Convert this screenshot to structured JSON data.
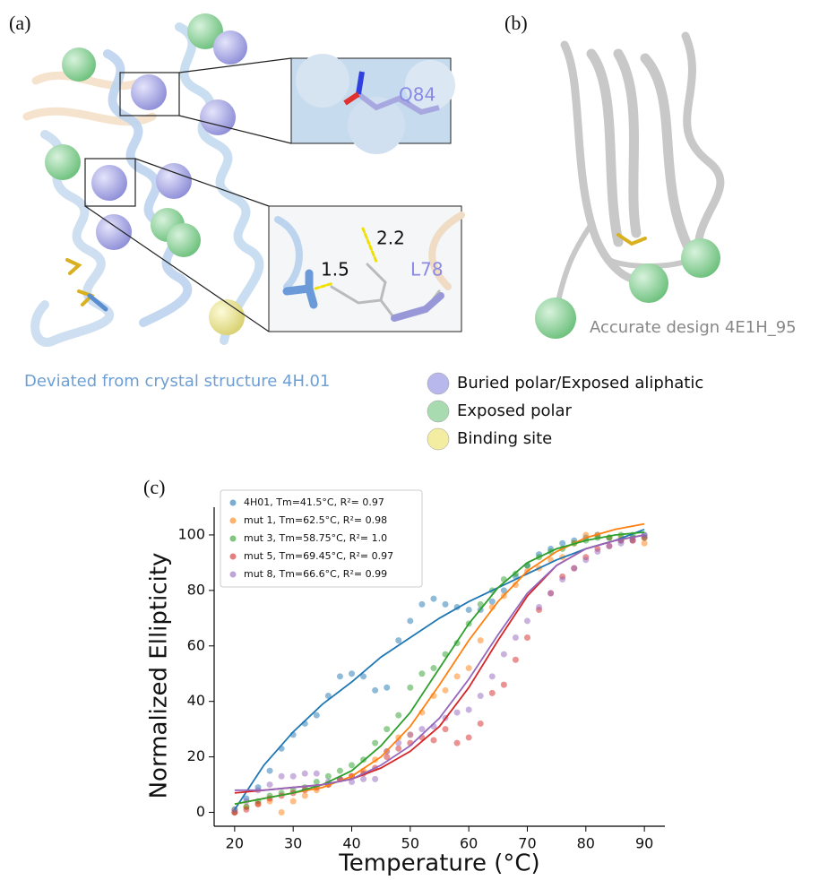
{
  "panel_a": {
    "label": "(a)",
    "inset_top_label": "Q84",
    "distance_1": "2.2",
    "distance_2": "1.5",
    "inset_bottom_label": "L78",
    "caption": "Deviated from crystal structure 4H.01"
  },
  "panel_b": {
    "label": "(b)",
    "caption": "Accurate design 4E1H_95"
  },
  "sphere_legend": [
    {
      "label": "Buried polar/Exposed aliphatic",
      "color": "#b8b8ec"
    },
    {
      "label": "Exposed polar",
      "color": "#a8dcb0"
    },
    {
      "label": "Binding site",
      "color": "#f2eda0"
    }
  ],
  "chart_data": {
    "type": "scatter",
    "panel_label": "(c)",
    "x_label": "Temperature (°C)",
    "y_label": "Normalized Ellipticity",
    "x": [
      20,
      22,
      24,
      26,
      28,
      30,
      32,
      34,
      36,
      38,
      40,
      42,
      44,
      46,
      48,
      50,
      52,
      54,
      56,
      58,
      60,
      62,
      64,
      66,
      68,
      70,
      72,
      74,
      76,
      78,
      80,
      82,
      84,
      86,
      88,
      90
    ],
    "fit_x": [
      20,
      25,
      30,
      35,
      40,
      45,
      50,
      55,
      60,
      65,
      70,
      75,
      80,
      85,
      90
    ],
    "series": [
      {
        "name": "4H01, Tm=41.5°C, R²= 0.97",
        "color": "#1f77b4",
        "values": [
          0,
          5,
          9,
          15,
          23,
          28,
          32,
          35,
          42,
          49,
          50,
          49,
          44,
          45,
          62,
          69,
          75,
          77,
          75,
          74,
          73,
          73,
          76,
          80,
          85,
          89,
          93,
          95,
          97,
          98,
          99,
          100,
          99,
          98,
          99,
          100
        ],
        "fit_values": [
          1,
          17,
          29,
          39,
          47,
          56,
          63,
          70,
          76,
          81,
          86,
          91,
          95,
          98,
          102
        ]
      },
      {
        "name": "mut 1, Tm=62.5°C, R²= 0.98",
        "color": "#ff7f0e",
        "values": [
          0,
          2,
          3,
          4,
          0,
          4,
          6,
          8,
          10,
          12,
          13,
          15,
          19,
          22,
          27,
          28,
          36,
          42,
          44,
          49,
          52,
          62,
          74,
          78,
          82,
          87,
          88,
          91,
          92,
          97,
          100,
          100,
          99,
          99,
          98,
          97
        ],
        "fit_values": [
          3,
          5,
          7,
          9,
          13,
          20,
          31,
          46,
          62,
          76,
          87,
          94,
          99,
          102,
          104
        ]
      },
      {
        "name": "mut 3, Tm=58.75°C, R²= 1.0",
        "color": "#2ca02c",
        "values": [
          1,
          2,
          4,
          6,
          7,
          8,
          9,
          11,
          13,
          15,
          17,
          19,
          25,
          30,
          35,
          45,
          50,
          52,
          57,
          61,
          68,
          75,
          80,
          84,
          86,
          89,
          92,
          94,
          95,
          97,
          98,
          99,
          99,
          100,
          100,
          99
        ],
        "fit_values": [
          3,
          5,
          7,
          10,
          15,
          24,
          36,
          52,
          68,
          81,
          90,
          95,
          98,
          100,
          101
        ]
      },
      {
        "name": "mut 5, Tm=69.45°C, R²= 0.97",
        "color": "#d62728",
        "values": [
          0,
          1,
          3,
          5,
          6,
          7,
          8,
          9,
          10,
          12,
          13,
          14,
          16,
          20,
          23,
          25,
          27,
          26,
          30,
          25,
          27,
          32,
          43,
          46,
          55,
          63,
          73,
          79,
          85,
          88,
          92,
          95,
          96,
          98,
          98,
          99
        ],
        "fit_values": [
          7,
          8,
          9,
          10,
          12,
          16,
          22,
          31,
          45,
          62,
          78,
          89,
          95,
          98,
          100
        ]
      },
      {
        "name": "mut 8, Tm=66.6°C, R²= 0.99",
        "color": "#9467bd",
        "values": [
          1,
          4,
          8,
          10,
          13,
          13,
          14,
          14,
          11,
          12,
          11,
          12,
          12,
          22,
          25,
          28,
          30,
          31,
          34,
          36,
          37,
          42,
          49,
          57,
          63,
          69,
          74,
          79,
          84,
          88,
          91,
          94,
          96,
          97,
          98,
          100
        ],
        "fit_values": [
          8,
          8,
          9,
          10,
          12,
          17,
          24,
          34,
          48,
          64,
          79,
          89,
          95,
          98,
          100
        ]
      }
    ],
    "xlim": [
      16.5,
      93.5
    ],
    "ylim": [
      -5,
      110
    ],
    "xticks": [
      20,
      30,
      40,
      50,
      60,
      70,
      80,
      90
    ],
    "yticks": [
      0,
      20,
      40,
      60,
      80,
      100
    ],
    "legend": "upper left"
  }
}
